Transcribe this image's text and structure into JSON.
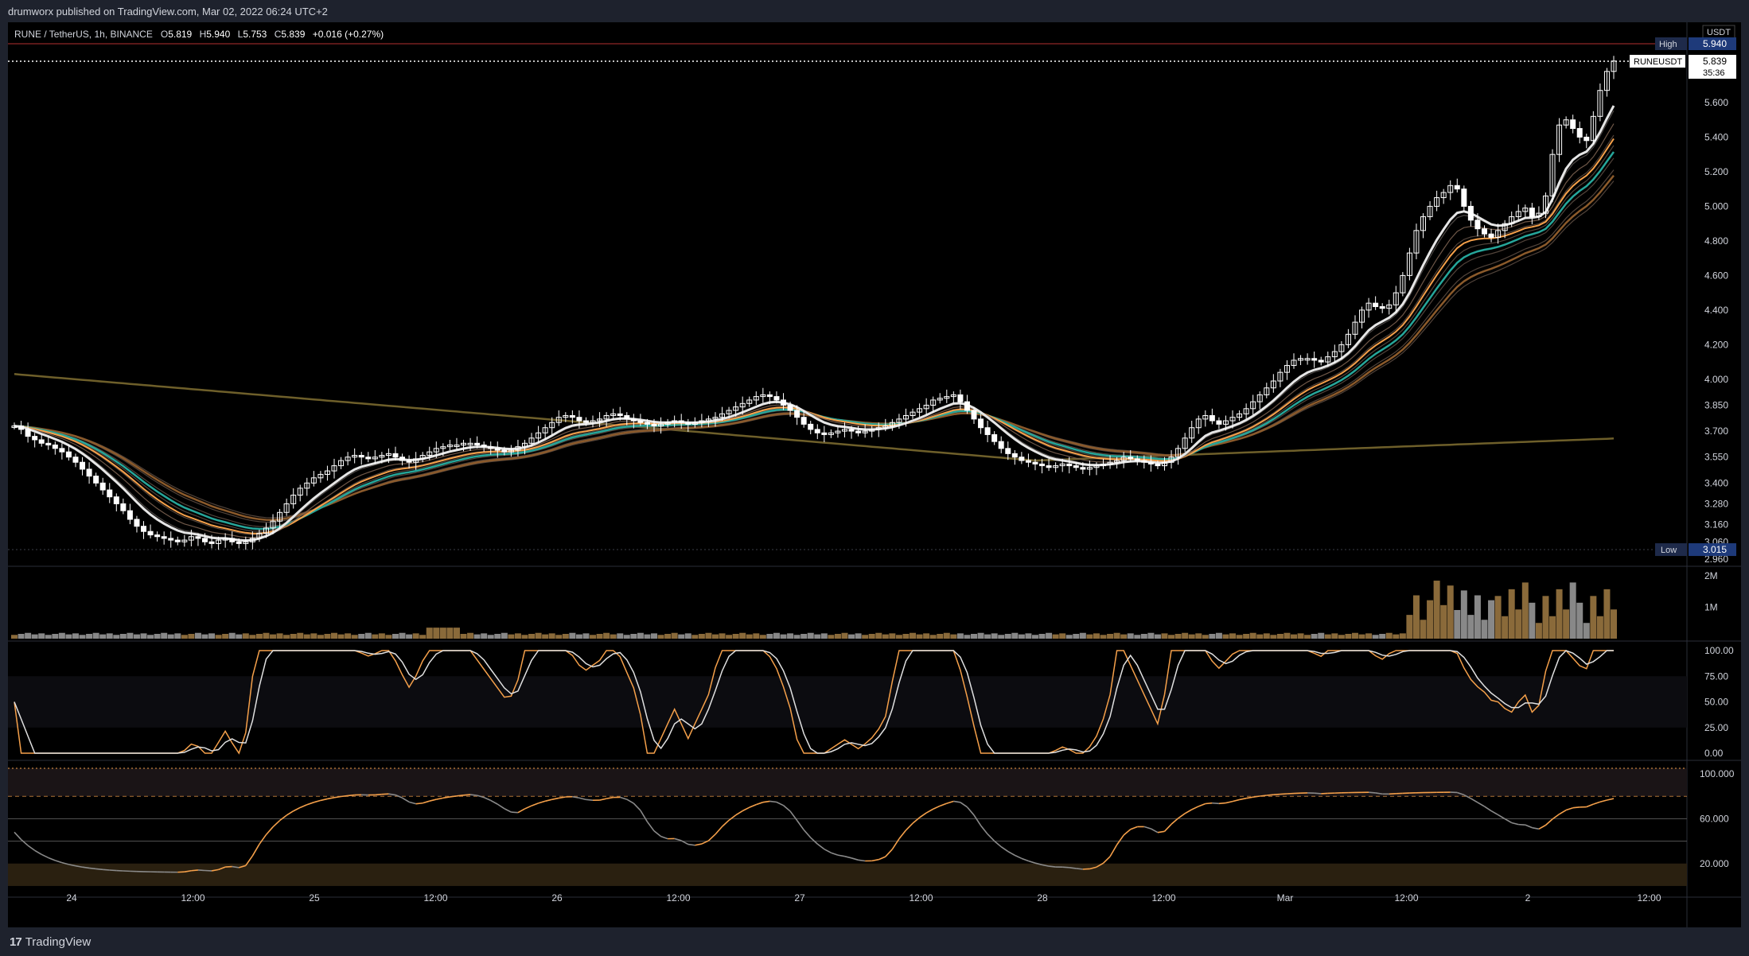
{
  "publish_info": "drumworx published on TradingView.com, Mar 02, 2022 06:24 UTC+2",
  "footer_logo": "TradingView",
  "legend": {
    "symbol": "RUNE / TetherUS, 1h, BINANCE",
    "o_label": "O",
    "o": "5.819",
    "h_label": "H",
    "h": "5.940",
    "l_label": "L",
    "l": "5.753",
    "c_label": "C",
    "c": "5.839",
    "change": "+0.016 (+0.27%)"
  },
  "price_scale": {
    "currency": "USDT",
    "ticks": [
      "5.600",
      "5.400",
      "5.200",
      "5.000",
      "4.800",
      "4.600",
      "4.400",
      "4.200",
      "4.000",
      "3.850",
      "3.700",
      "3.550",
      "3.400",
      "3.280",
      "3.160",
      "3.060",
      "2.960"
    ],
    "high_label": "High",
    "high_value": "5.940",
    "low_label": "Low",
    "low_value": "3.015",
    "symbol_label": "RUNEUSDT",
    "last_price": "5.839",
    "countdown": "35:36"
  },
  "volume_scale": {
    "ticks": [
      "2M",
      "1M"
    ]
  },
  "stoch_scale": {
    "ticks": [
      "100.00",
      "75.00",
      "50.00",
      "25.00",
      "0.00"
    ]
  },
  "osc_scale": {
    "ticks": [
      "100.000",
      "60.000",
      "20.000"
    ]
  },
  "time_axis": {
    "labels": [
      "24",
      "12:00",
      "25",
      "12:00",
      "26",
      "12:00",
      "27",
      "12:00",
      "28",
      "12:00",
      "Mar",
      "12:00",
      "2",
      "12:00"
    ]
  },
  "colors": {
    "background": "#000000",
    "candle": "#ffffff",
    "fast_ma": "#e6e6e6",
    "teal_ma": "#26a69a",
    "orange_ma": "#f5a04a",
    "brown_ma": "#8b5a2b",
    "ma200": "#6e5f2a",
    "red_ma": "#d6336c",
    "vol_up": "#8a6a3a",
    "vol_down": "#888888",
    "stoch_k": "#f5a04a",
    "stoch_d": "#e0e0e0",
    "osc_line": "#f5a04a"
  },
  "chart_data": {
    "type": "candlestick",
    "symbol": "RUNE / TetherUS",
    "interval": "1h",
    "exchange": "BINANCE",
    "x_start": "Feb 23 2022 20:00",
    "x_end": "Mar 02 2022 06:00",
    "ylim": [
      2.96,
      5.94
    ],
    "close": [
      3.73,
      3.71,
      3.67,
      3.65,
      3.63,
      3.62,
      3.6,
      3.58,
      3.55,
      3.52,
      3.48,
      3.44,
      3.4,
      3.36,
      3.32,
      3.28,
      3.24,
      3.19,
      3.15,
      3.12,
      3.1,
      3.09,
      3.08,
      3.07,
      3.06,
      3.07,
      3.09,
      3.08,
      3.06,
      3.05,
      3.07,
      3.08,
      3.06,
      3.05,
      3.06,
      3.08,
      3.11,
      3.14,
      3.18,
      3.23,
      3.28,
      3.33,
      3.37,
      3.4,
      3.43,
      3.45,
      3.47,
      3.5,
      3.53,
      3.55,
      3.56,
      3.55,
      3.54,
      3.55,
      3.56,
      3.57,
      3.55,
      3.53,
      3.52,
      3.54,
      3.56,
      3.58,
      3.6,
      3.61,
      3.62,
      3.62,
      3.63,
      3.63,
      3.62,
      3.61,
      3.6,
      3.59,
      3.58,
      3.59,
      3.61,
      3.63,
      3.66,
      3.69,
      3.72,
      3.75,
      3.78,
      3.79,
      3.78,
      3.76,
      3.75,
      3.76,
      3.77,
      3.79,
      3.8,
      3.79,
      3.77,
      3.76,
      3.75,
      3.74,
      3.73,
      3.74,
      3.75,
      3.76,
      3.75,
      3.74,
      3.75,
      3.76,
      3.77,
      3.78,
      3.8,
      3.82,
      3.84,
      3.86,
      3.88,
      3.9,
      3.91,
      3.9,
      3.88,
      3.85,
      3.82,
      3.78,
      3.74,
      3.71,
      3.69,
      3.68,
      3.69,
      3.7,
      3.71,
      3.7,
      3.69,
      3.7,
      3.71,
      3.72,
      3.73,
      3.75,
      3.77,
      3.79,
      3.81,
      3.83,
      3.85,
      3.88,
      3.89,
      3.9,
      3.91,
      3.87,
      3.82,
      3.77,
      3.72,
      3.68,
      3.64,
      3.6,
      3.57,
      3.55,
      3.53,
      3.52,
      3.51,
      3.5,
      3.49,
      3.5,
      3.51,
      3.5,
      3.49,
      3.48,
      3.49,
      3.5,
      3.51,
      3.52,
      3.53,
      3.55,
      3.54,
      3.53,
      3.52,
      3.51,
      3.5,
      3.52,
      3.55,
      3.6,
      3.66,
      3.72,
      3.77,
      3.79,
      3.76,
      3.74,
      3.76,
      3.78,
      3.8,
      3.83,
      3.87,
      3.91,
      3.95,
      3.99,
      4.04,
      4.08,
      4.11,
      4.12,
      4.12,
      4.11,
      4.1,
      4.13,
      4.16,
      4.2,
      4.26,
      4.33,
      4.4,
      4.44,
      4.42,
      4.41,
      4.43,
      4.5,
      4.6,
      4.73,
      4.86,
      4.94,
      5.0,
      5.05,
      5.08,
      5.12,
      5.1,
      5.0,
      4.92,
      4.87,
      4.84,
      4.82,
      4.86,
      4.9,
      4.94,
      4.97,
      4.99,
      4.94,
      4.96,
      5.06,
      5.3,
      5.47,
      5.5,
      5.45,
      5.4,
      5.38,
      5.52,
      5.67,
      5.78,
      5.84
    ],
    "volume_ticks": [
      "2M",
      "1M"
    ],
    "stoch_ticks": [
      100,
      75,
      50,
      25,
      0
    ],
    "osc_ticks": [
      100,
      60,
      20
    ]
  }
}
